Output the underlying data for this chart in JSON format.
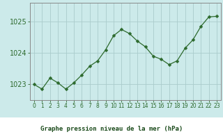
{
  "x": [
    0,
    1,
    2,
    3,
    4,
    5,
    6,
    7,
    8,
    9,
    10,
    11,
    12,
    13,
    14,
    15,
    16,
    17,
    18,
    19,
    20,
    21,
    22,
    23
  ],
  "y": [
    1023.0,
    1022.85,
    1023.2,
    1023.05,
    1022.85,
    1023.05,
    1023.3,
    1023.58,
    1023.75,
    1024.1,
    1024.55,
    1024.75,
    1024.62,
    1024.38,
    1024.2,
    1023.9,
    1023.8,
    1023.63,
    1023.75,
    1024.15,
    1024.42,
    1024.85,
    1025.15,
    1025.17
  ],
  "line_color": "#2d6a2d",
  "marker": "D",
  "marker_size": 2.5,
  "background_color": "#cceaea",
  "grid_color": "#aacccc",
  "xlabel": "Graphe pression niveau de la mer (hPa)",
  "xlabel_color": "#1a4a1a",
  "tick_label_color": "#2d6a2d",
  "axis_color": "#888888",
  "ylim": [
    1022.5,
    1025.6
  ],
  "yticks": [
    1023,
    1024,
    1025
  ],
  "xlim": [
    -0.5,
    23.5
  ],
  "xtick_labels": [
    "0",
    "1",
    "2",
    "3",
    "4",
    "5",
    "6",
    "7",
    "8",
    "9",
    "10",
    "11",
    "12",
    "13",
    "14",
    "15",
    "16",
    "17",
    "18",
    "19",
    "20",
    "21",
    "22",
    "23"
  ],
  "bottom_strip_color": "#ffffff",
  "label_fontsize": 6.5,
  "ytick_fontsize": 7,
  "xtick_fontsize": 5.5
}
